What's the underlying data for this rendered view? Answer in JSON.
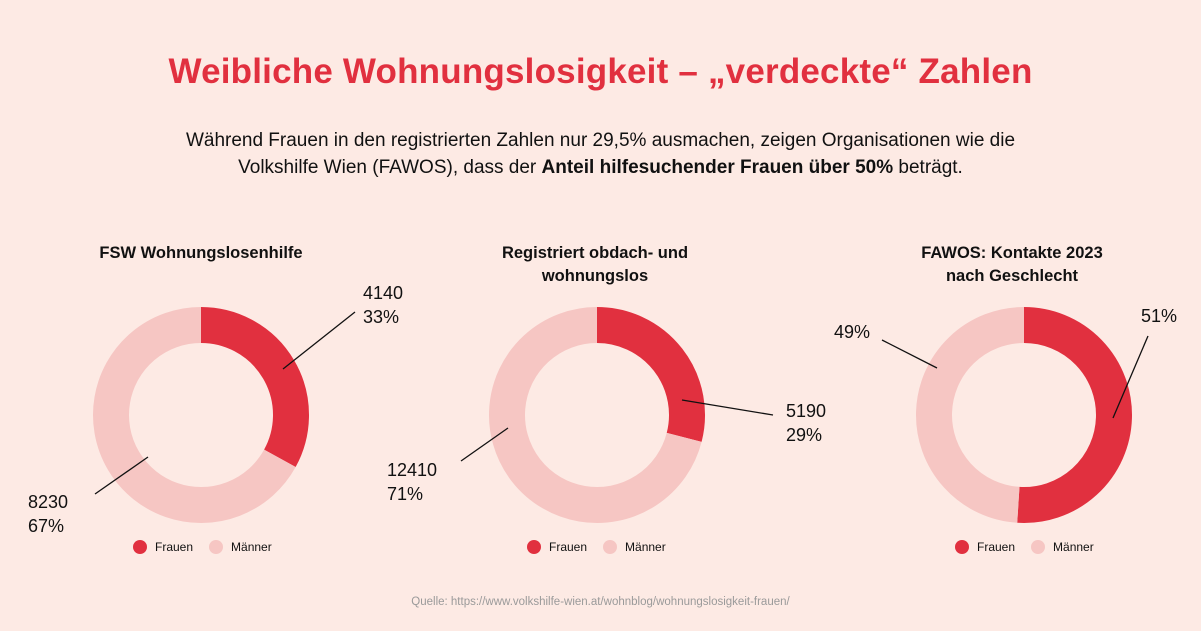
{
  "title": "Weibliche Wohnungslosigkeit – „verdeckte“ Zahlen",
  "subtitle": {
    "line1": "Während Frauen in den registrierten Zahlen nur 29,5% ausmachen, zeigen Organisationen wie die",
    "line2_prefix": "Volkshilfe Wien (FAWOS), dass der ",
    "line2_bold": "Anteil hilfesuchender Frauen über 50%",
    "line2_suffix": " beträgt."
  },
  "colors": {
    "frauen": "#e1303f",
    "maenner": "#f6c6c3",
    "title": "#e1303f",
    "background": "#fdeae4"
  },
  "legend": {
    "frauen": "Frauen",
    "maenner": "Männer"
  },
  "source": "Quelle: https://www.volkshilfe-wien.at/wohnblog/wohnungslosigkeit-frauen/",
  "chart_data": [
    {
      "type": "pie",
      "title": "FSW Wohnungslosenhilfe",
      "categories": [
        "Frauen",
        "Männer"
      ],
      "values": [
        33,
        67
      ],
      "counts": [
        4140,
        8230
      ],
      "labels": [
        {
          "value": "4140",
          "pct": "33%"
        },
        {
          "value": "8230",
          "pct": "67%"
        }
      ]
    },
    {
      "type": "pie",
      "title": "Registriert obdach- und wohnungslos",
      "title_line1": "Registriert obdach- und",
      "title_line2": "wohnungslos",
      "categories": [
        "Frauen",
        "Männer"
      ],
      "values": [
        29,
        71
      ],
      "counts": [
        5190,
        12410
      ],
      "labels": [
        {
          "value": "5190",
          "pct": "29%"
        },
        {
          "value": "12410",
          "pct": "71%"
        }
      ]
    },
    {
      "type": "pie",
      "title": "FAWOS: Kontakte 2023 nach Geschlecht",
      "title_line1": "FAWOS: Kontakte 2023",
      "title_line2": "nach Geschlecht",
      "categories": [
        "Frauen",
        "Männer"
      ],
      "values": [
        51,
        49
      ],
      "labels": [
        {
          "pct": "51%"
        },
        {
          "pct": "49%"
        }
      ]
    }
  ]
}
